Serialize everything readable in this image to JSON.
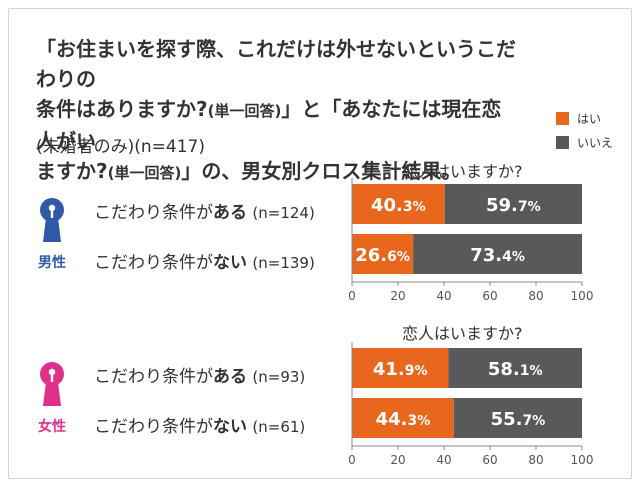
{
  "title": {
    "line1": "「お住まいを探す際、これだけは外せないというこだわりの",
    "line2a": "条件はありますか?",
    "line2b": "(単一回答)",
    "line2c": "」と「あなたには現在恋人がい",
    "line3a": "ますか?",
    "line3b": "(単一回答)",
    "line3c": "」の、男女別クロス集計結果。"
  },
  "subtitle": "(未婚者のみ)(n=417)",
  "legend": [
    {
      "label": "はい",
      "color": "#e8671c"
    },
    {
      "label": "いいえ",
      "color": "#57595b"
    }
  ],
  "chart_data": [
    {
      "type": "bar",
      "orientation": "horizontal",
      "stacked": true,
      "group": "男性",
      "heading": "恋人はいますか?",
      "categories": [
        {
          "prefix": "こだわり条件が",
          "bold": "ある",
          "n": "(n=124)"
        },
        {
          "prefix": "こだわり条件が",
          "bold": "ない",
          "n": "(n=139)"
        }
      ],
      "series": [
        {
          "name": "はい",
          "values": [
            40.3,
            26.6
          ],
          "labels": [
            [
              "40.",
              "3",
              "%"
            ],
            [
              "26.",
              "6",
              "%"
            ]
          ],
          "color": "#e8671c"
        },
        {
          "name": "いいえ",
          "values": [
            59.7,
            73.4
          ],
          "labels": [
            [
              "59.",
              "7",
              "%"
            ],
            [
              "73.",
              "4",
              "%"
            ]
          ],
          "color": "#57595b"
        }
      ],
      "xlim": [
        0,
        100
      ],
      "xticks": [
        "0",
        "20",
        "40",
        "60",
        "80",
        "100"
      ],
      "grid": false
    },
    {
      "type": "bar",
      "orientation": "horizontal",
      "stacked": true,
      "group": "女性",
      "heading": "恋人はいますか?",
      "categories": [
        {
          "prefix": "こだわり条件が",
          "bold": "ある",
          "n": "(n=93)"
        },
        {
          "prefix": "こだわり条件が",
          "bold": "ない",
          "n": "(n=61)"
        }
      ],
      "series": [
        {
          "name": "はい",
          "values": [
            41.9,
            44.3
          ],
          "labels": [
            [
              "41.",
              "9",
              "%"
            ],
            [
              "44.",
              "3",
              "%"
            ]
          ],
          "color": "#e8671c"
        },
        {
          "name": "いいえ",
          "values": [
            58.1,
            55.7
          ],
          "labels": [
            [
              "58.",
              "1",
              "%"
            ],
            [
              "55.",
              "7",
              "%"
            ]
          ],
          "color": "#57595b"
        }
      ],
      "xlim": [
        0,
        100
      ],
      "xticks": [
        "0",
        "20",
        "40",
        "60",
        "80",
        "100"
      ],
      "grid": false
    }
  ],
  "gender_icons": [
    {
      "label": "男性",
      "icon": "male-keyhole-icon",
      "color": "#2e5aa8"
    },
    {
      "label": "女性",
      "icon": "female-keyhole-icon",
      "color": "#e0308a"
    }
  ]
}
